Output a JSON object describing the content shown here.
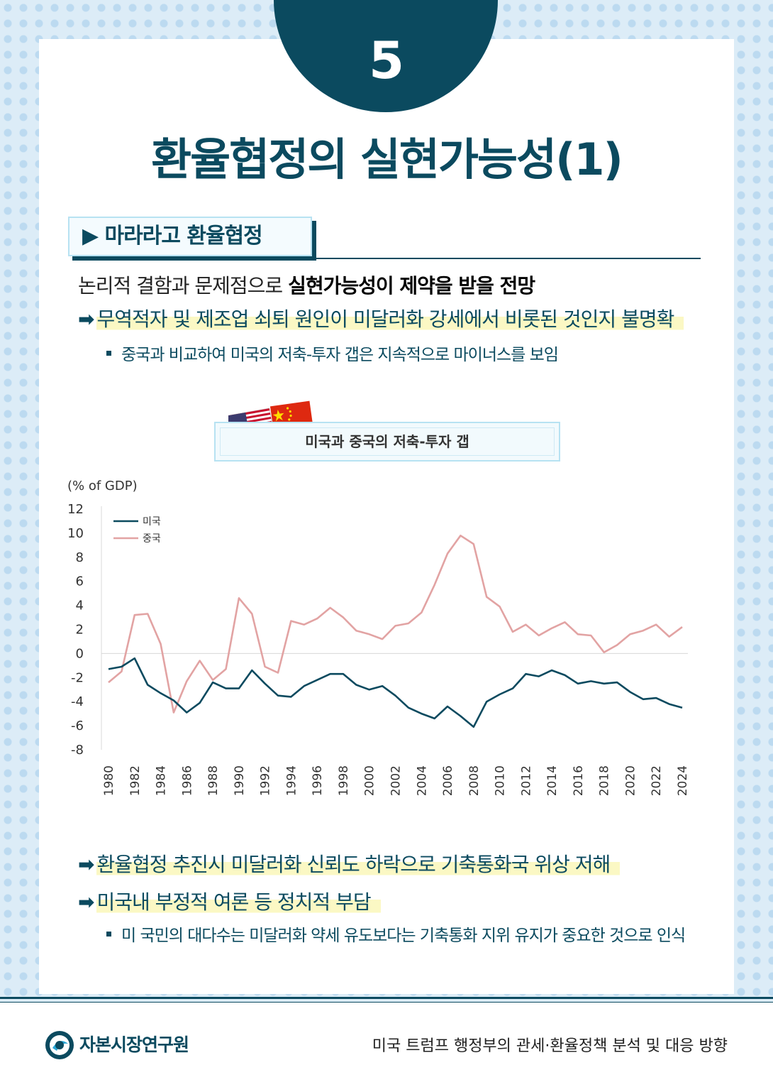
{
  "header": {
    "number": "5",
    "title": "환율협정의 실현가능성(1)"
  },
  "section": {
    "label": "▶ 마라라고 환율협정"
  },
  "content": {
    "lead_plain": "논리적 결함과 문제점으로 ",
    "lead_bold": "실현가능성이 제약을 받을 전망",
    "arrow1": "무역적자 및 제조업 쇠퇴 원인이 미달러화 강세에서 비롯된 것인지 불명확",
    "bullet1": "중국과 비교하여 미국의 저축-투자 갭은 지속적으로 마이너스를 보임",
    "arrow2": "환율협정 추진시 미달러화 신뢰도 하락으로 기축통화국 위상 저해",
    "arrow3": "미국내 부정적 여론 등 정치적 부담",
    "bullet2": "미 국민의 대다수는 미달러화 약세 유도보다는 기축통화 지위 유지가 중요한 것으로 인식",
    "arrow_symbol": "➡",
    "flag_icons": [
      "us-flag-icon",
      "china-flag-icon"
    ]
  },
  "chart_data": {
    "type": "line",
    "title": "미국과 중국의 저축-투자 갭",
    "unit_label": "(% of GDP)",
    "xlabel": "",
    "ylabel": "",
    "ylim": [
      -8,
      12
    ],
    "yticks": [
      12,
      10,
      8,
      6,
      4,
      2,
      0,
      -2,
      -4,
      -6,
      -8
    ],
    "x": [
      1980,
      1981,
      1982,
      1983,
      1984,
      1985,
      1986,
      1987,
      1988,
      1989,
      1990,
      1991,
      1992,
      1993,
      1994,
      1995,
      1996,
      1997,
      1998,
      1999,
      2000,
      2001,
      2002,
      2003,
      2004,
      2005,
      2006,
      2007,
      2008,
      2009,
      2010,
      2011,
      2012,
      2013,
      2014,
      2015,
      2016,
      2017,
      2018,
      2019,
      2020,
      2021,
      2022,
      2023,
      2024
    ],
    "xticks": [
      "1980",
      "1982",
      "1984",
      "1986",
      "1988",
      "1990",
      "1992",
      "1994",
      "1996",
      "1998",
      "2000",
      "2002",
      "2004",
      "2006",
      "2008",
      "2010",
      "2012",
      "2014",
      "2016",
      "2018",
      "2020",
      "2022",
      "2024"
    ],
    "legend_position": "top-left",
    "grid": false,
    "series": [
      {
        "name": "미국",
        "color": "#0b4a5f",
        "values": [
          -1.3,
          -1.1,
          -0.4,
          -2.6,
          -3.3,
          -3.9,
          -4.9,
          -4.1,
          -2.4,
          -2.9,
          -2.9,
          -1.4,
          -2.5,
          -3.5,
          -3.6,
          -2.7,
          -2.2,
          -1.7,
          -1.7,
          -2.6,
          -3.0,
          -2.7,
          -3.5,
          -4.5,
          -5.0,
          -5.4,
          -4.4,
          -5.2,
          -6.1,
          -4.0,
          -3.4,
          -2.9,
          -1.7,
          -1.9,
          -1.4,
          -1.8,
          -2.5,
          -2.3,
          -2.5,
          -2.4,
          -3.2,
          -3.8,
          -3.7,
          -4.2,
          -4.5
        ]
      },
      {
        "name": "중국",
        "color": "#e2a3a3",
        "values": [
          -2.4,
          -1.5,
          3.2,
          3.3,
          0.8,
          -4.9,
          -2.3,
          -0.6,
          -2.2,
          -1.3,
          4.6,
          3.3,
          -1.1,
          -1.6,
          2.7,
          2.4,
          2.9,
          3.8,
          3.0,
          1.9,
          1.6,
          1.2,
          2.3,
          2.5,
          3.4,
          5.7,
          8.3,
          9.8,
          9.1,
          4.7,
          3.9,
          1.8,
          2.4,
          1.5,
          2.1,
          2.6,
          1.6,
          1.5,
          0.1,
          0.7,
          1.6,
          1.9,
          2.4,
          1.4,
          2.2
        ]
      }
    ]
  },
  "footer": {
    "org": "자본시장연구원",
    "subtitle": "미국 트럼프 행정부의 관세·환율정책 분석 및 대응 방향"
  }
}
